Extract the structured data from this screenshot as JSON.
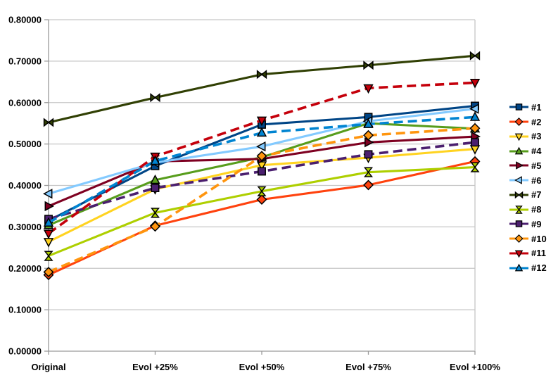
{
  "chart_data": {
    "type": "line",
    "title": "",
    "categories": [
      "Original",
      "Evol +25%",
      "Evol +50%",
      "Evol +75%",
      "Evol +100%"
    ],
    "y_axis": {
      "min": 0.0,
      "max": 0.8,
      "step": 0.1,
      "tick_labels": [
        "0.00000",
        "0.10000",
        "0.20000",
        "0.30000",
        "0.40000",
        "0.50000",
        "0.60000",
        "0.70000",
        "0.80000"
      ]
    },
    "grid": true,
    "legend_position": "right",
    "colors": {
      "background": "#ffffff",
      "gridline": "#c6c6c6",
      "axis": "#9a9a9a",
      "text": "#000000",
      "marker_outline": "#000000"
    },
    "series": [
      {
        "name": "#1",
        "color": "#004586",
        "marker": "square",
        "dash": false,
        "values": [
          0.315,
          0.447,
          0.547,
          0.565,
          0.592
        ]
      },
      {
        "name": "#2",
        "color": "#ff420e",
        "marker": "diamond",
        "dash": false,
        "values": [
          0.184,
          0.303,
          0.366,
          0.401,
          0.458
        ]
      },
      {
        "name": "#3",
        "color": "#ffd320",
        "marker": "triangle-down",
        "dash": false,
        "values": [
          0.264,
          0.391,
          0.449,
          0.467,
          0.488
        ]
      },
      {
        "name": "#4",
        "color": "#579d1c",
        "marker": "triangle-up",
        "dash": false,
        "values": [
          0.304,
          0.413,
          0.468,
          0.55,
          0.537
        ]
      },
      {
        "name": "#5",
        "color": "#7e0021",
        "marker": "triangle-right",
        "dash": false,
        "values": [
          0.35,
          0.458,
          0.464,
          0.504,
          0.518
        ]
      },
      {
        "name": "#6",
        "color": "#83caff",
        "marker": "triangle-left",
        "dash": false,
        "values": [
          0.38,
          0.455,
          0.494,
          0.555,
          0.585
        ]
      },
      {
        "name": "#7",
        "color": "#314004",
        "marker": "bowtie-h",
        "dash": false,
        "values": [
          0.552,
          0.612,
          0.668,
          0.69,
          0.713
        ]
      },
      {
        "name": "#8",
        "color": "#aecf00",
        "marker": "bowtie-v",
        "dash": false,
        "values": [
          0.23,
          0.334,
          0.386,
          0.432,
          0.444
        ]
      },
      {
        "name": "#9",
        "color": "#4b1f6f",
        "marker": "square",
        "dash": true,
        "values": [
          0.319,
          0.394,
          0.434,
          0.475,
          0.504
        ]
      },
      {
        "name": "#10",
        "color": "#ff950e",
        "marker": "diamond",
        "dash": true,
        "values": [
          0.191,
          0.301,
          0.471,
          0.521,
          0.538
        ]
      },
      {
        "name": "#11",
        "color": "#c5000b",
        "marker": "triangle-down",
        "dash": true,
        "values": [
          0.284,
          0.47,
          0.557,
          0.635,
          0.648
        ]
      },
      {
        "name": "#12",
        "color": "#0084d1",
        "marker": "triangle-up",
        "dash": true,
        "values": [
          0.31,
          0.459,
          0.527,
          0.548,
          0.565
        ]
      }
    ]
  }
}
